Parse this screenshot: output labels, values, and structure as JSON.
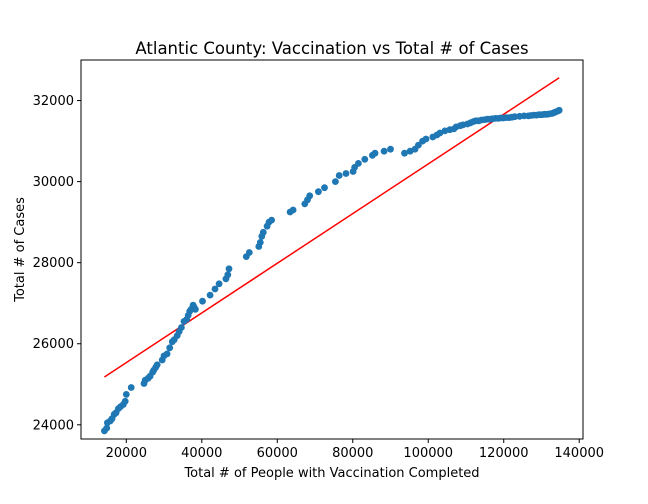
{
  "chart_data": {
    "type": "scatter",
    "title": "Atlantic County: Vaccination vs Total # of Cases",
    "xlabel": "Total # of People with Vaccination Completed",
    "ylabel": "Total # of Cases",
    "xlim": [
      8000,
      141000
    ],
    "ylim": [
      23650,
      33000
    ],
    "xticks": [
      20000,
      40000,
      60000,
      80000,
      100000,
      120000,
      140000
    ],
    "yticks": [
      24000,
      26000,
      28000,
      30000,
      32000
    ],
    "grid": false,
    "legend": "none",
    "colors": {
      "points": "#1f77b4",
      "fit_line": "#ff0000"
    },
    "series": [
      {
        "type": "scatter",
        "x": [
          14200,
          14800,
          15000,
          15800,
          16200,
          16800,
          17300,
          17900,
          18500,
          19200,
          19700,
          20000,
          21300,
          24700,
          25000,
          25800,
          26300,
          27000,
          27300,
          27800,
          28200,
          29500,
          30000,
          30800,
          31500,
          32200,
          32700,
          33500,
          34000,
          34600,
          35300,
          36000,
          36400,
          36800,
          37200,
          37700,
          38000,
          38300,
          40200,
          42200,
          43500,
          44600,
          46400,
          46900,
          47200,
          51800,
          52600,
          55100,
          55500,
          55900,
          56300,
          57300,
          57800,
          58500,
          63400,
          64200,
          67300,
          68000,
          68600,
          70900,
          72500,
          75400,
          76400,
          78200,
          80100,
          80500,
          81500,
          83200,
          85200,
          85900,
          88300,
          90000,
          93700,
          95200,
          96500,
          97400,
          98500,
          99400,
          101200,
          102300,
          103100,
          104400,
          105700,
          106800,
          107400,
          108500,
          109200,
          110400,
          111200,
          111900,
          112600,
          113400,
          114100,
          115000,
          115700,
          116300,
          117000,
          117800,
          118500,
          119200,
          119900,
          120700,
          121500,
          122200,
          122900,
          124200,
          125400,
          126500,
          127200,
          128000,
          128700,
          129400,
          130100,
          130800,
          131500,
          132100,
          132800,
          133300,
          133800,
          134300,
          134700
        ],
        "y": [
          23850,
          23920,
          24050,
          24100,
          24150,
          24260,
          24300,
          24400,
          24450,
          24500,
          24580,
          24750,
          24920,
          25020,
          25100,
          25150,
          25200,
          25300,
          25350,
          25420,
          25480,
          25600,
          25700,
          25750,
          25900,
          26050,
          26100,
          26200,
          26300,
          26400,
          26550,
          26600,
          26700,
          26800,
          26850,
          26950,
          26900,
          26850,
          27050,
          27200,
          27350,
          27480,
          27600,
          27700,
          27850,
          28150,
          28250,
          28400,
          28500,
          28650,
          28750,
          28900,
          29000,
          29050,
          29250,
          29300,
          29450,
          29550,
          29650,
          29750,
          29850,
          30000,
          30150,
          30200,
          30250,
          30350,
          30450,
          30550,
          30650,
          30700,
          30750,
          30800,
          30700,
          30750,
          30800,
          30900,
          31000,
          31050,
          31100,
          31150,
          31200,
          31250,
          31280,
          31300,
          31350,
          31380,
          31400,
          31420,
          31450,
          31480,
          31500,
          31500,
          31520,
          31530,
          31540,
          31540,
          31550,
          31560,
          31560,
          31570,
          31570,
          31580,
          31580,
          31590,
          31600,
          31610,
          31620,
          31620,
          31630,
          31640,
          31640,
          31650,
          31650,
          31660,
          31660,
          31670,
          31680,
          31700,
          31720,
          31740,
          31760
        ]
      },
      {
        "type": "line",
        "x": [
          14200,
          134700
        ],
        "y": [
          25180,
          32560
        ]
      }
    ]
  }
}
